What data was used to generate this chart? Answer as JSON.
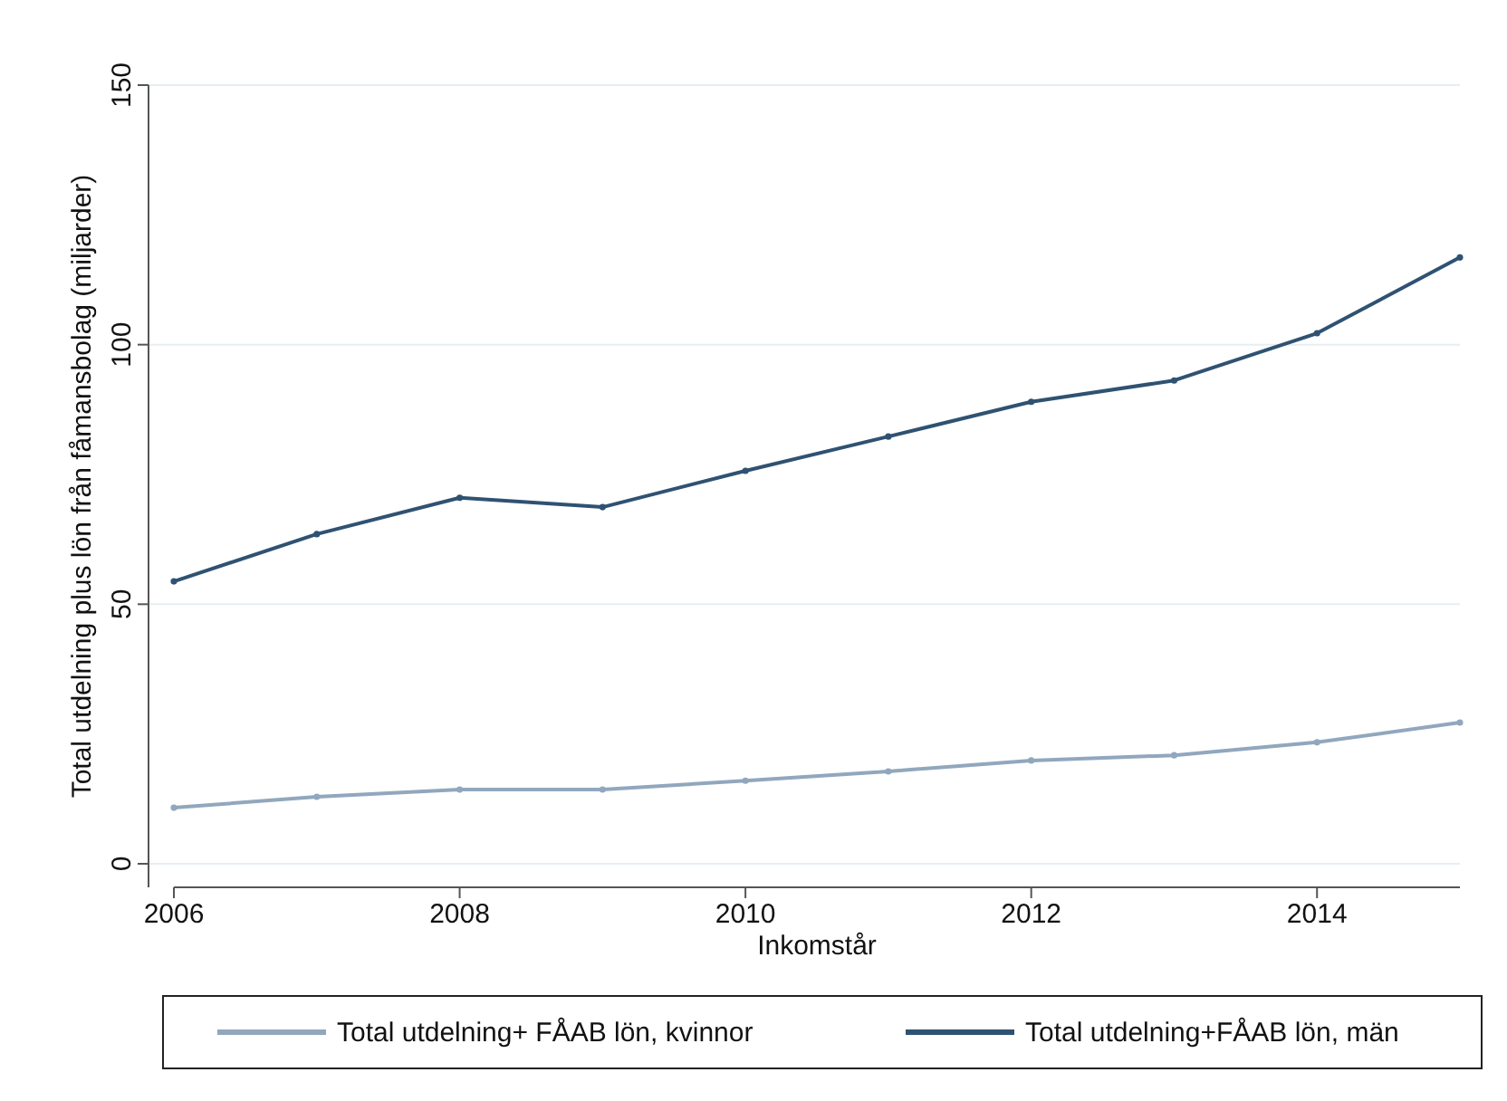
{
  "chart_data": {
    "type": "line",
    "xlabel": "Inkomstår",
    "ylabel": "Total utdelning plus lön från fåmansbolag (miljarder)",
    "x": [
      2006,
      2007,
      2008,
      2009,
      2010,
      2011,
      2012,
      2013,
      2014,
      2015
    ],
    "series": [
      {
        "name": "Total utdelning+ FÅAB lön, kvinnor",
        "color": "#91a7bd",
        "values": [
          10.8,
          12.9,
          14.3,
          14.3,
          16,
          17.8,
          19.9,
          20.9,
          23.4,
          27.2
        ]
      },
      {
        "name": "Total utdelning+FÅAB lön, män",
        "color": "#2f5272",
        "values": [
          54.4,
          63.5,
          70.5,
          68.7,
          75.7,
          82.3,
          89,
          93.1,
          102.2,
          116.8
        ]
      }
    ],
    "xlim": [
      2006,
      2015
    ],
    "xticks": [
      2006,
      2008,
      2010,
      2012,
      2014
    ],
    "ylim": [
      0,
      150
    ],
    "yticks": [
      0,
      50,
      100,
      150
    ],
    "grid": "y",
    "legend": "bottom",
    "marker": "circle",
    "line_style": "solid"
  }
}
